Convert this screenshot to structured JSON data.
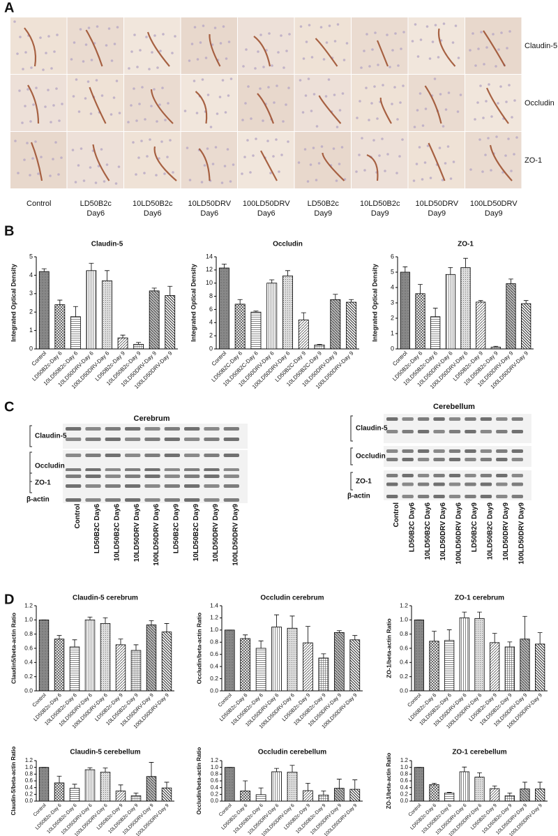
{
  "panel_labels": {
    "a": "A",
    "b": "B",
    "c": "C",
    "d": "D"
  },
  "panel_a": {
    "row_labels": [
      "Claudin-5",
      "Occludin",
      "ZO-1"
    ],
    "column_labels": [
      [
        "Control"
      ],
      [
        "LD50B2c",
        "Day6"
      ],
      [
        "10LD50B2c",
        "Day6"
      ],
      [
        "10LD50DRV",
        "Day6"
      ],
      [
        "100LD50DRV",
        "Day6"
      ],
      [
        "LD50B2c",
        "Day9"
      ],
      [
        "10LD50B2c",
        "Day9"
      ],
      [
        "10LD50DRV",
        "Day9"
      ],
      [
        "100LD50DRV",
        "Day9"
      ]
    ]
  },
  "panel_c": [
    {
      "title": "Cerebrum",
      "row_labels": [
        "Claudin-5",
        "Occludin",
        "ZO-1",
        "β-actin"
      ],
      "lane_labels": [
        "Control",
        "LD50B2C Day6",
        "10LD50B2C Day6",
        "10LD50DRV Day6",
        "100LD50DRV Day6",
        "LD50B2C Day9",
        "10LD50B2C Day9",
        "10LD50DRV Day9",
        "100LD50DRV Day9"
      ]
    },
    {
      "title": "Cerebellum",
      "row_labels": [
        "Claudin-5",
        "Occludin",
        "ZO-1",
        "β-actin"
      ],
      "lane_labels": [
        "Control",
        "LD50B2C Day6",
        "10LD50B2C Day6",
        "10LD50DRV Day6",
        "100LD50DRV Day6",
        "LD50B2C Day9",
        "10LD50B2C Day9",
        "10LD50DRV Day9",
        "100LD50DRV Day9"
      ]
    }
  ],
  "chart_data": [
    {
      "type": "bar",
      "title": "Claudin-5",
      "y_label": "Integrated Optical Density",
      "categories": [
        "Control",
        "LD50B2c-Day 6",
        "10LD50B2c-Day 6",
        "10LD50DRV-Day 6",
        "100LD50DRV-Day 6",
        "LD50B2c-Day 9",
        "10LD50B2c-Day 9",
        "10LD50DRV-Day 9",
        "100LD50DRV-Day 9"
      ],
      "values": [
        4.2,
        2.4,
        1.75,
        4.25,
        3.7,
        0.6,
        0.25,
        3.15,
        2.9
      ],
      "errors": [
        0.15,
        0.25,
        0.55,
        0.4,
        0.55,
        0.15,
        0.1,
        0.15,
        0.5
      ],
      "ylim": [
        0,
        5
      ],
      "yticks": [
        0,
        1,
        2,
        3,
        4,
        5
      ]
    },
    {
      "type": "bar",
      "title": "Occludin",
      "y_label": "Integrated Optical Density",
      "categories": [
        "Control",
        "LD50B2C-Day 6",
        "10LD50B2C-Day 6",
        "10LD50DRV-Day 6",
        "100LD50DRV-Day 6",
        "LD50B2C-Day 9",
        "10LD50B2C-Day 9",
        "10LD50DRV-Day 9",
        "100LD50DRV-Day 9"
      ],
      "values": [
        12.3,
        6.8,
        5.6,
        10.0,
        11.1,
        4.4,
        0.6,
        7.5,
        7.1
      ],
      "errors": [
        0.6,
        0.7,
        0.15,
        0.5,
        0.8,
        1.1,
        0.1,
        0.8,
        0.4
      ],
      "ylim": [
        0,
        14
      ],
      "yticks": [
        0,
        2,
        4,
        6,
        8,
        10,
        12,
        14
      ]
    },
    {
      "type": "bar",
      "title": "ZO-1",
      "y_label": "Integrated Optical Density",
      "categories": [
        "Control",
        "LD50B2c-Day 6",
        "10LD50B2c-Day 6",
        "10LD50DRV-Day 6",
        "100LD50DRV-Day 6",
        "LD50B2c-Day 9",
        "10LD50B2c-Day 9",
        "10LD50DRV-Day 9",
        "100LD50DRV-Day 9"
      ],
      "values": [
        5.0,
        3.6,
        2.1,
        4.85,
        5.3,
        3.05,
        0.12,
        4.25,
        2.95
      ],
      "errors": [
        0.35,
        0.6,
        0.55,
        0.45,
        0.6,
        0.1,
        0.05,
        0.3,
        0.2
      ],
      "ylim": [
        0,
        6
      ],
      "yticks": [
        0,
        1,
        2,
        3,
        4,
        5,
        6
      ]
    },
    {
      "type": "bar",
      "title": "Claudin-5 cerebrum",
      "y_label": "Claudin5/beta-actin Ratio",
      "categories": [
        "Control",
        "LD50B2c-Day 6",
        "10LD50B2c-Day 6",
        "10LD50DRV-Day 6",
        "100LD50DRV-Day 6",
        "LD50B2c-Day 9",
        "10LD50B2c-Day 9",
        "10LD50DRV-Day 9",
        "100LD50DRV-Day 9"
      ],
      "values": [
        1.0,
        0.73,
        0.62,
        1.0,
        0.95,
        0.65,
        0.57,
        0.93,
        0.83
      ],
      "errors": [
        0,
        0.05,
        0.1,
        0.04,
        0.08,
        0.08,
        0.08,
        0.06,
        0.12
      ],
      "ylim": [
        0,
        1.2
      ],
      "yticks": [
        {
          "value": 0,
          "label": "0.0"
        },
        0.2,
        0.4,
        0.6,
        0.8,
        {
          "value": 1,
          "label": "1.0"
        },
        1.2
      ]
    },
    {
      "type": "bar",
      "title": "Occludin cerebrum",
      "y_label": "Occludin/beta-actin Ratio",
      "categories": [
        "Control",
        "LD50B2c-Day 6",
        "10LD50B2c-Day 6",
        "10LD50DRV-Day 6",
        "100LD50DRV-Day 6",
        "LD50B2c-Day 9",
        "10LD50B2c-Day 9",
        "10LD50DRV-Day 9",
        "100LD50DRV-Day 9"
      ],
      "values": [
        1.0,
        0.86,
        0.7,
        1.05,
        1.03,
        0.79,
        0.54,
        0.96,
        0.84
      ],
      "errors": [
        0,
        0.06,
        0.12,
        0.2,
        0.2,
        0.27,
        0.07,
        0.03,
        0.07
      ],
      "ylim": [
        0,
        1.4
      ],
      "yticks": [
        {
          "value": 0,
          "label": "0.0"
        },
        0.2,
        0.4,
        0.6,
        0.8,
        {
          "value": 1,
          "label": "1.0"
        },
        1.2,
        1.4
      ]
    },
    {
      "type": "bar",
      "title": "ZO-1 cerebrum",
      "y_label": "ZO-1/beta-actin Ratio",
      "categories": [
        "Control",
        "LD50B2c-Day 6",
        "10LD50B2c-Day 6",
        "10LD50DRV-Day 6",
        "100LD50DRV-Day 6",
        "LD50B2c-Day 9",
        "10LD50B2c-Day 9",
        "10LD50DRV-Day 9",
        "100LD50DRV-Day 9"
      ],
      "values": [
        1.0,
        0.7,
        0.71,
        1.03,
        1.02,
        0.68,
        0.62,
        0.73,
        0.66
      ],
      "errors": [
        0,
        0.14,
        0.15,
        0.08,
        0.09,
        0.13,
        0.07,
        0.32,
        0.16
      ],
      "ylim": [
        0,
        1.2
      ],
      "yticks": [
        {
          "value": 0,
          "label": "0.0"
        },
        0.2,
        0.4,
        0.6,
        0.8,
        {
          "value": 1,
          "label": "1.0"
        },
        1.2
      ]
    },
    {
      "type": "bar",
      "title": "Claudin-5 cerebellum",
      "y_label": "Claudin-5/beta-actin Ratio",
      "categories": [
        "Control",
        "LD50B2c-Day 6",
        "10LD50B2c-Day 6",
        "10LD50DRV-Day 6",
        "100LD50DRV-Day 6",
        "LD50B2c-Day 9",
        "10LD50B2c-Day 9",
        "10LD50DRV-Day 9",
        "100LD50DRV-Day 9"
      ],
      "values": [
        1.0,
        0.54,
        0.38,
        0.93,
        0.86,
        0.3,
        0.16,
        0.73,
        0.39
      ],
      "errors": [
        0,
        0.2,
        0.12,
        0.06,
        0.12,
        0.18,
        0.08,
        0.42,
        0.17
      ],
      "ylim": [
        0,
        1.2
      ],
      "yticks": [
        {
          "value": 0,
          "label": "0.0"
        },
        0.2,
        0.4,
        0.6,
        0.8,
        {
          "value": 1,
          "label": "1.0"
        },
        1.2
      ]
    },
    {
      "type": "bar",
      "title": "Occludin cerebellum",
      "y_label": "Occludin/beta-actin Ratio",
      "categories": [
        "Control",
        "LD50B2c-Day 6",
        "10LD50B2c-Day 6",
        "10LD50DRV-Day 6",
        "100LD50DRV-Day 6",
        "LD50B2c-Day 9",
        "10LD50B2c-Day 9",
        "10LD50DRV-Day 9",
        "100LD50DRV-Day 9"
      ],
      "values": [
        1.0,
        0.3,
        0.19,
        0.87,
        0.86,
        0.31,
        0.18,
        0.38,
        0.35
      ],
      "errors": [
        0,
        0.3,
        0.2,
        0.1,
        0.2,
        0.22,
        0.12,
        0.27,
        0.28
      ],
      "ylim": [
        0,
        1.2
      ],
      "yticks": [
        {
          "value": 0,
          "label": "0.0"
        },
        0.2,
        0.4,
        0.6,
        0.8,
        {
          "value": 1,
          "label": "1.0"
        },
        1.2
      ]
    },
    {
      "type": "bar",
      "title": "ZO-1 cerebellum",
      "y_label": "ZO-1/beta-actin Ratio",
      "categories": [
        "Control",
        "LD50B2c-Day 6",
        "10LD50B2c-Day 6",
        "10LD50DRV-Day 6",
        "100LD50DRV-Day 6",
        "LD50B2c-Day 9",
        "10LD50B2c-Day 9",
        "10LD50DRV-Day 9",
        "100LD50DRV-Day 9"
      ],
      "values": [
        1.0,
        0.49,
        0.24,
        0.87,
        0.71,
        0.37,
        0.16,
        0.36,
        0.36
      ],
      "errors": [
        0,
        0.04,
        0.02,
        0.14,
        0.13,
        0.08,
        0.08,
        0.2,
        0.2
      ],
      "ylim": [
        0,
        1.2
      ],
      "yticks": [
        {
          "value": 0,
          "label": "0.0"
        },
        0.2,
        0.4,
        0.6,
        0.8,
        {
          "value": 1,
          "label": "1.0"
        },
        1.2
      ]
    }
  ]
}
